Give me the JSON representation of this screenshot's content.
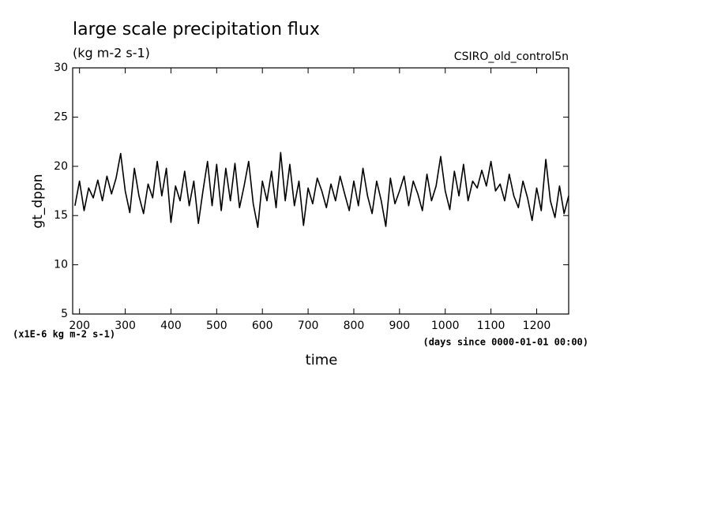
{
  "chart_data": {
    "type": "line",
    "title": "large scale precipitation flux",
    "subtitle": "(kg m-2 s-1)",
    "dataset_label": "CSIRO_old_control5n",
    "y_label": "gt_dppn",
    "y_units_note": "(x1E-6 kg m-2 s-1)",
    "x_units_note": "(days since 0000-01-01 00:00)",
    "x_label": "time",
    "xlim": [
      185,
      1270
    ],
    "ylim": [
      5,
      30
    ],
    "xticks": [
      200,
      300,
      400,
      500,
      600,
      700,
      800,
      900,
      1000,
      1100,
      1200
    ],
    "yticks": [
      5,
      10,
      15,
      20,
      25,
      30
    ],
    "x": [
      190,
      200,
      210,
      220,
      230,
      240,
      250,
      260,
      270,
      280,
      290,
      300,
      310,
      320,
      330,
      340,
      350,
      360,
      370,
      380,
      390,
      400,
      410,
      420,
      430,
      440,
      450,
      460,
      470,
      480,
      490,
      500,
      510,
      520,
      530,
      540,
      550,
      560,
      570,
      580,
      590,
      600,
      610,
      620,
      630,
      640,
      650,
      660,
      670,
      680,
      690,
      700,
      710,
      720,
      730,
      740,
      750,
      760,
      770,
      780,
      790,
      800,
      810,
      820,
      830,
      840,
      850,
      860,
      870,
      880,
      890,
      900,
      910,
      920,
      930,
      940,
      950,
      960,
      970,
      980,
      990,
      1000,
      1010,
      1020,
      1030,
      1040,
      1050,
      1060,
      1070,
      1080,
      1090,
      1100,
      1110,
      1120,
      1130,
      1140,
      1150,
      1160,
      1170,
      1180,
      1190,
      1200,
      1210,
      1220,
      1230,
      1240,
      1250,
      1260,
      1270
    ],
    "series": [
      {
        "color": "#000000",
        "values": [
          16.0,
          18.5,
          15.5,
          17.8,
          16.8,
          18.6,
          16.5,
          19.0,
          17.2,
          18.8,
          21.3,
          17.5,
          15.3,
          19.8,
          17.0,
          15.2,
          18.2,
          16.8,
          20.5,
          17.0,
          19.8,
          14.3,
          18.0,
          16.5,
          19.5,
          16.0,
          18.5,
          14.2,
          17.5,
          20.5,
          16.0,
          20.2,
          15.5,
          19.8,
          16.5,
          20.3,
          15.8,
          18.0,
          20.5,
          16.2,
          13.8,
          18.5,
          16.5,
          19.5,
          15.8,
          21.4,
          16.5,
          20.2,
          16.0,
          18.5,
          14.0,
          17.8,
          16.2,
          18.8,
          17.5,
          15.8,
          18.2,
          16.5,
          19.0,
          17.2,
          15.5,
          18.5,
          16.0,
          19.8,
          17.0,
          15.2,
          18.5,
          16.5,
          13.9,
          18.8,
          16.2,
          17.5,
          19.0,
          16.0,
          18.5,
          17.2,
          15.5,
          19.2,
          16.5,
          18.0,
          21.0,
          17.5,
          15.6,
          19.5,
          17.0,
          20.2,
          16.5,
          18.5,
          17.8,
          19.6,
          18.0,
          20.5,
          17.5,
          18.2,
          16.5,
          19.2,
          17.0,
          15.8,
          18.5,
          16.8,
          14.5,
          17.8,
          15.5,
          20.7,
          16.5,
          14.8,
          18.0,
          15.2,
          17.0
        ]
      }
    ]
  }
}
